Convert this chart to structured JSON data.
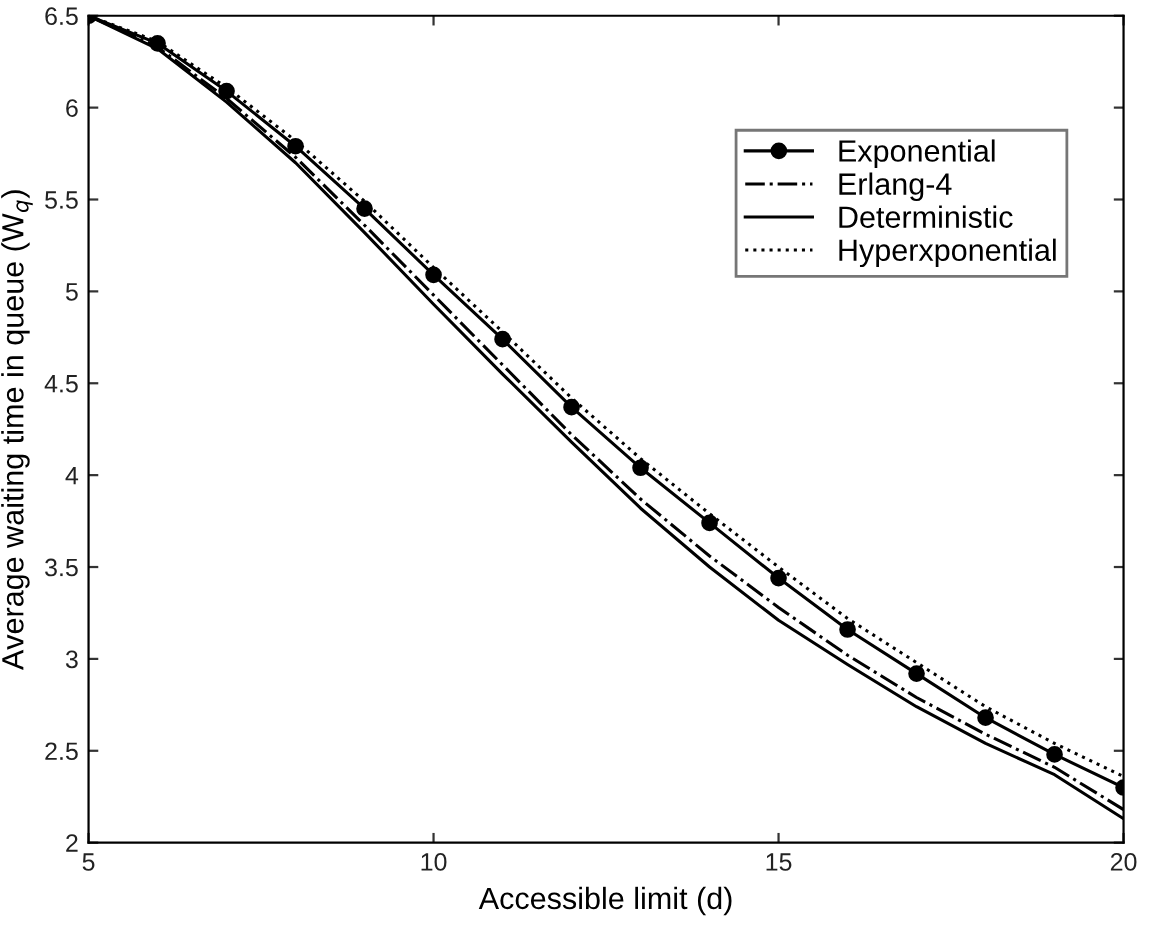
{
  "chart_data": {
    "type": "line",
    "xlabel": "Accessible limit (d)",
    "ylabel": "Average waiting time in queue (W$_{q}$)",
    "x": [
      5,
      6,
      7,
      8,
      9,
      10,
      11,
      12,
      13,
      14,
      15,
      16,
      17,
      18,
      19,
      20
    ],
    "series": [
      {
        "name": "Exponential",
        "color": "#000000",
        "marker": "circle",
        "line_style": "solid",
        "values": [
          6.5,
          6.35,
          6.09,
          5.79,
          5.45,
          5.09,
          4.74,
          4.37,
          4.04,
          3.74,
          3.44,
          3.16,
          2.92,
          2.68,
          2.48,
          2.3
        ]
      },
      {
        "name": "Erlang-4",
        "color": "#000000",
        "marker": "none",
        "line_style": "dashdot",
        "values": [
          6.5,
          6.33,
          6.05,
          5.73,
          5.36,
          4.98,
          4.6,
          4.22,
          3.87,
          3.56,
          3.28,
          3.02,
          2.79,
          2.59,
          2.41,
          2.18
        ]
      },
      {
        "name": "Deterministic",
        "color": "#000000",
        "marker": "none",
        "line_style": "solid",
        "values": [
          6.5,
          6.32,
          6.03,
          5.7,
          5.32,
          4.93,
          4.55,
          4.18,
          3.82,
          3.5,
          3.21,
          2.97,
          2.74,
          2.54,
          2.37,
          2.13
        ]
      },
      {
        "name": "Hyperxponential",
        "color": "#000000",
        "marker": "none",
        "line_style": "dotted",
        "values": [
          6.5,
          6.36,
          6.11,
          5.82,
          5.49,
          5.13,
          4.78,
          4.42,
          4.09,
          3.79,
          3.5,
          3.22,
          2.98,
          2.74,
          2.54,
          2.36
        ]
      }
    ],
    "xlim": [
      5,
      20
    ],
    "xticks": [
      5,
      10,
      15,
      20
    ],
    "ylim": [
      2,
      6.5
    ],
    "yticks": [
      2,
      2.5,
      3,
      3.5,
      4,
      4.5,
      5,
      5.5,
      6,
      6.5
    ],
    "grid": false,
    "legend": "upper right"
  }
}
